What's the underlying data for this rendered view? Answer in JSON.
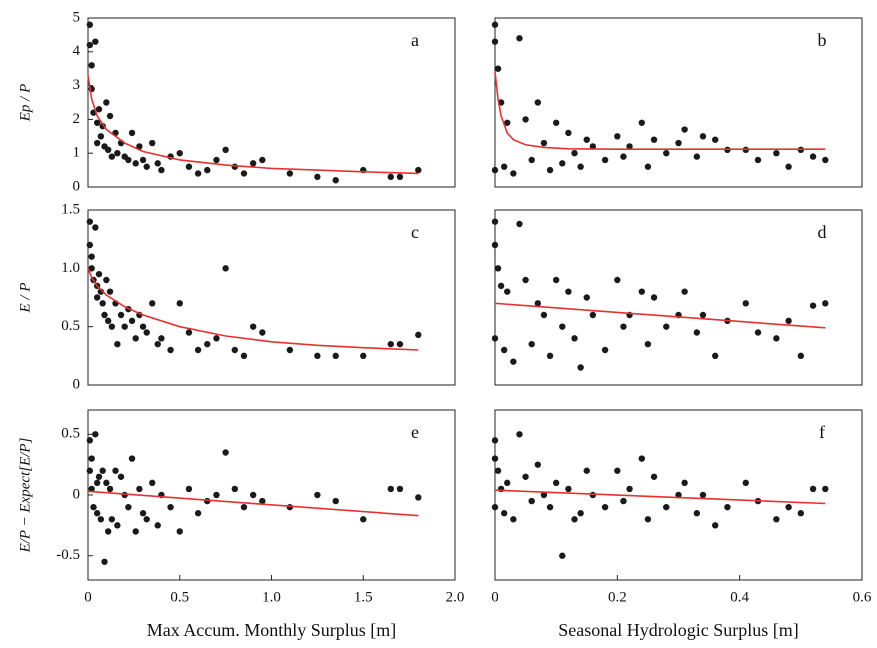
{
  "chart_data": [
    {
      "type": "scatter",
      "annotation": "a",
      "ylabel": "Ep / P",
      "xlim": [
        0,
        2
      ],
      "ylim": [
        0,
        5
      ],
      "yticks": [
        0,
        1,
        2,
        3,
        4,
        5
      ],
      "series": [
        {
          "type": "scatter",
          "color": "#1a1a1a",
          "x": [
            0.01,
            0.01,
            0.02,
            0.02,
            0.03,
            0.04,
            0.05,
            0.05,
            0.06,
            0.07,
            0.08,
            0.09,
            0.1,
            0.11,
            0.12,
            0.13,
            0.15,
            0.16,
            0.18,
            0.2,
            0.22,
            0.24,
            0.26,
            0.28,
            0.3,
            0.32,
            0.35,
            0.38,
            0.4,
            0.45,
            0.5,
            0.55,
            0.6,
            0.65,
            0.7,
            0.75,
            0.8,
            0.85,
            0.9,
            0.95,
            1.1,
            1.25,
            1.35,
            1.5,
            1.65,
            1.7,
            1.8
          ],
          "values": [
            4.8,
            4.2,
            3.6,
            2.9,
            2.2,
            4.3,
            1.9,
            1.3,
            2.3,
            1.5,
            1.8,
            1.2,
            2.5,
            1.1,
            2.1,
            0.9,
            1.6,
            1.0,
            1.3,
            0.9,
            0.8,
            1.6,
            0.7,
            1.2,
            0.8,
            0.6,
            1.3,
            0.7,
            0.5,
            0.9,
            1.0,
            0.6,
            0.4,
            0.5,
            0.8,
            1.1,
            0.6,
            0.4,
            0.7,
            0.8,
            0.4,
            0.3,
            0.2,
            0.5,
            0.3,
            0.3,
            0.5
          ]
        },
        {
          "type": "line",
          "color": "#e8312f",
          "x": [
            0,
            0.02,
            0.05,
            0.1,
            0.2,
            0.3,
            0.5,
            0.75,
            1,
            1.25,
            1.5,
            1.8
          ],
          "values": [
            3.3,
            2.6,
            2.1,
            1.7,
            1.3,
            1.05,
            0.8,
            0.65,
            0.55,
            0.5,
            0.45,
            0.4
          ]
        }
      ]
    },
    {
      "type": "scatter",
      "annotation": "b",
      "xlim": [
        0,
        0.6
      ],
      "ylim": [
        0,
        5
      ],
      "series": [
        {
          "type": "scatter",
          "color": "#1a1a1a",
          "x": [
            0,
            0,
            0,
            0.005,
            0.01,
            0.015,
            0.02,
            0.03,
            0.04,
            0.05,
            0.06,
            0.07,
            0.08,
            0.09,
            0.1,
            0.11,
            0.12,
            0.13,
            0.14,
            0.15,
            0.16,
            0.18,
            0.2,
            0.21,
            0.22,
            0.24,
            0.25,
            0.26,
            0.28,
            0.3,
            0.31,
            0.33,
            0.34,
            0.36,
            0.38,
            0.41,
            0.43,
            0.46,
            0.48,
            0.5,
            0.52,
            0.54
          ],
          "values": [
            4.8,
            4.3,
            0.5,
            3.5,
            2.5,
            0.6,
            1.9,
            0.4,
            4.4,
            2.0,
            0.8,
            2.5,
            1.3,
            0.5,
            1.9,
            0.7,
            1.6,
            1.0,
            0.6,
            1.4,
            1.2,
            0.8,
            1.5,
            0.9,
            1.2,
            1.9,
            0.6,
            1.4,
            1.0,
            1.3,
            1.7,
            0.9,
            1.5,
            1.4,
            1.1,
            1.1,
            0.8,
            1.0,
            0.6,
            1.1,
            0.9,
            0.8
          ]
        },
        {
          "type": "line",
          "color": "#e8312f",
          "x": [
            0,
            0.005,
            0.01,
            0.02,
            0.03,
            0.05,
            0.08,
            0.12,
            0.2,
            0.3,
            0.4,
            0.54
          ],
          "values": [
            3.4,
            2.6,
            2.1,
            1.6,
            1.4,
            1.25,
            1.17,
            1.13,
            1.12,
            1.12,
            1.12,
            1.12
          ]
        }
      ]
    },
    {
      "type": "scatter",
      "annotation": "c",
      "ylabel": "E / P",
      "xlim": [
        0,
        2
      ],
      "ylim": [
        0,
        1.5
      ],
      "yticks": [
        0,
        0.5,
        {
          "value": 1,
          "label": "1.0"
        },
        1.5
      ],
      "series": [
        {
          "type": "scatter",
          "color": "#1a1a1a",
          "x": [
            0.01,
            0.01,
            0.02,
            0.02,
            0.03,
            0.04,
            0.05,
            0.05,
            0.06,
            0.07,
            0.08,
            0.09,
            0.1,
            0.11,
            0.12,
            0.13,
            0.15,
            0.16,
            0.18,
            0.2,
            0.22,
            0.24,
            0.26,
            0.28,
            0.3,
            0.32,
            0.35,
            0.38,
            0.4,
            0.45,
            0.5,
            0.55,
            0.6,
            0.65,
            0.7,
            0.75,
            0.8,
            0.85,
            0.9,
            0.95,
            1.1,
            1.25,
            1.35,
            1.5,
            1.65,
            1.7,
            1.8
          ],
          "values": [
            1.4,
            1.2,
            1.1,
            1.0,
            0.9,
            1.35,
            0.85,
            0.75,
            0.95,
            0.8,
            0.7,
            0.6,
            0.9,
            0.55,
            0.8,
            0.5,
            0.7,
            0.35,
            0.6,
            0.5,
            0.65,
            0.55,
            0.4,
            0.6,
            0.5,
            0.45,
            0.7,
            0.35,
            0.4,
            0.3,
            0.7,
            0.45,
            0.3,
            0.35,
            0.4,
            1.0,
            0.3,
            0.25,
            0.5,
            0.45,
            0.3,
            0.25,
            0.25,
            0.25,
            0.35,
            0.35,
            0.43
          ]
        },
        {
          "type": "line",
          "color": "#e8312f",
          "x": [
            0,
            0.02,
            0.05,
            0.1,
            0.2,
            0.3,
            0.5,
            0.75,
            1,
            1.25,
            1.5,
            1.8
          ],
          "values": [
            1.0,
            0.92,
            0.85,
            0.77,
            0.67,
            0.6,
            0.5,
            0.42,
            0.37,
            0.34,
            0.32,
            0.3
          ]
        }
      ]
    },
    {
      "type": "scatter",
      "annotation": "d",
      "xlim": [
        0,
        0.6
      ],
      "ylim": [
        0,
        1.5
      ],
      "series": [
        {
          "type": "scatter",
          "color": "#1a1a1a",
          "x": [
            0,
            0,
            0,
            0.005,
            0.01,
            0.015,
            0.02,
            0.03,
            0.04,
            0.05,
            0.06,
            0.07,
            0.08,
            0.09,
            0.1,
            0.11,
            0.12,
            0.13,
            0.14,
            0.15,
            0.16,
            0.18,
            0.2,
            0.21,
            0.22,
            0.24,
            0.25,
            0.26,
            0.28,
            0.3,
            0.31,
            0.33,
            0.34,
            0.36,
            0.38,
            0.41,
            0.43,
            0.46,
            0.48,
            0.5,
            0.52,
            0.54
          ],
          "values": [
            1.4,
            1.2,
            0.4,
            1.0,
            0.85,
            0.3,
            0.8,
            0.2,
            1.38,
            0.9,
            0.35,
            0.7,
            0.6,
            0.25,
            0.9,
            0.5,
            0.8,
            0.4,
            0.15,
            0.75,
            0.6,
            0.3,
            0.9,
            0.5,
            0.6,
            0.8,
            0.35,
            0.75,
            0.5,
            0.6,
            0.8,
            0.45,
            0.6,
            0.25,
            0.55,
            0.7,
            0.45,
            0.4,
            0.55,
            0.25,
            0.68,
            0.7
          ]
        },
        {
          "type": "line",
          "color": "#e8312f",
          "x": [
            0,
            0.54
          ],
          "values": [
            0.7,
            0.49
          ]
        }
      ]
    },
    {
      "type": "scatter",
      "annotation": "e",
      "ylabel": "E/P − Expect[E/P]",
      "xlabel": "Max Accum. Monthly Surplus [m]",
      "xlim": [
        0,
        2
      ],
      "ylim": [
        -0.7,
        0.7
      ],
      "yticks": [
        -0.5,
        0,
        0.5
      ],
      "xticks": [
        0,
        0.5,
        {
          "value": 1,
          "label": "1.0"
        },
        1.5,
        {
          "value": 2,
          "label": "2.0"
        }
      ],
      "series": [
        {
          "type": "scatter",
          "color": "#1a1a1a",
          "x": [
            0.01,
            0.01,
            0.02,
            0.02,
            0.03,
            0.04,
            0.05,
            0.05,
            0.06,
            0.07,
            0.08,
            0.09,
            0.1,
            0.11,
            0.12,
            0.13,
            0.15,
            0.16,
            0.18,
            0.2,
            0.22,
            0.24,
            0.26,
            0.28,
            0.3,
            0.32,
            0.35,
            0.38,
            0.4,
            0.45,
            0.5,
            0.55,
            0.6,
            0.65,
            0.7,
            0.75,
            0.8,
            0.85,
            0.9,
            0.95,
            1.1,
            1.25,
            1.35,
            1.5,
            1.65,
            1.7,
            1.8
          ],
          "values": [
            0.45,
            0.2,
            0.3,
            0.05,
            -0.1,
            0.5,
            0.1,
            -0.15,
            0.15,
            -0.2,
            0.2,
            -0.55,
            0.1,
            -0.3,
            0.05,
            -0.2,
            0.2,
            -0.25,
            0.15,
            0,
            -0.1,
            0.3,
            -0.3,
            0.05,
            -0.15,
            -0.2,
            0.1,
            -0.25,
            0,
            -0.1,
            -0.3,
            0.05,
            -0.15,
            -0.05,
            0,
            0.35,
            0.05,
            -0.1,
            0,
            -0.05,
            -0.1,
            0,
            -0.05,
            -0.2,
            0.05,
            0.05,
            -0.02
          ]
        },
        {
          "type": "line",
          "color": "#e8312f",
          "x": [
            0,
            1.8
          ],
          "values": [
            0.03,
            -0.17
          ]
        }
      ]
    },
    {
      "type": "scatter",
      "annotation": "f",
      "xlabel": "Seasonal Hydrologic Surplus [m]",
      "xlim": [
        0,
        0.6
      ],
      "ylim": [
        -0.7,
        0.7
      ],
      "xticks": [
        0,
        0.2,
        0.4,
        0.6
      ],
      "series": [
        {
          "type": "scatter",
          "color": "#1a1a1a",
          "x": [
            0,
            0,
            0,
            0.005,
            0.01,
            0.015,
            0.02,
            0.03,
            0.04,
            0.05,
            0.06,
            0.07,
            0.08,
            0.09,
            0.1,
            0.11,
            0.12,
            0.13,
            0.14,
            0.15,
            0.16,
            0.18,
            0.2,
            0.21,
            0.22,
            0.24,
            0.25,
            0.26,
            0.28,
            0.3,
            0.31,
            0.33,
            0.34,
            0.36,
            0.38,
            0.41,
            0.43,
            0.46,
            0.48,
            0.5,
            0.52,
            0.54
          ],
          "values": [
            0.45,
            0.3,
            -0.1,
            0.2,
            0.05,
            -0.15,
            0.1,
            -0.2,
            0.5,
            0.15,
            -0.05,
            0.25,
            0,
            -0.1,
            0.1,
            -0.5,
            0.05,
            -0.2,
            -0.15,
            0.2,
            0,
            -0.1,
            0.2,
            -0.05,
            0.05,
            0.3,
            -0.2,
            0.15,
            -0.1,
            0,
            0.1,
            -0.15,
            0,
            -0.25,
            -0.1,
            0.1,
            -0.05,
            -0.2,
            -0.1,
            -0.15,
            0.05,
            0.05
          ]
        },
        {
          "type": "line",
          "color": "#e8312f",
          "x": [
            0,
            0.54
          ],
          "values": [
            0.04,
            -0.07
          ]
        }
      ]
    }
  ]
}
